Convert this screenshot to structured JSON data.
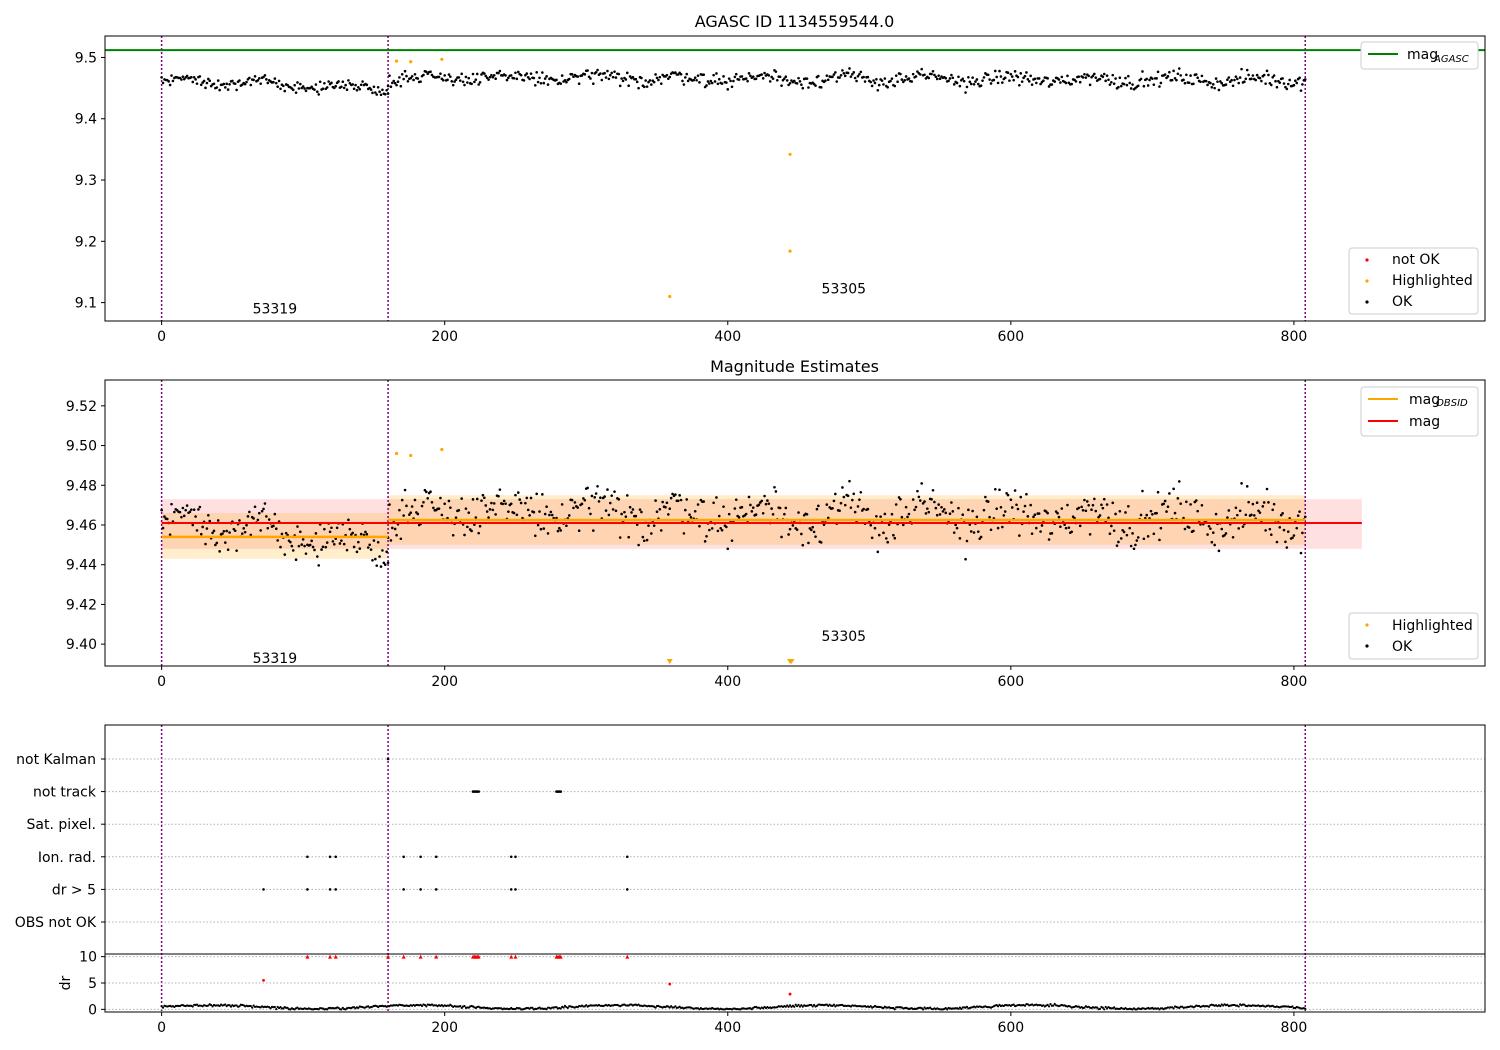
{
  "chart_data": [
    {
      "type": "scatter",
      "title": "AGASC ID 1134559544.0",
      "xlim": [
        -40,
        935
      ],
      "ylim": [
        9.07,
        9.535
      ],
      "xticks": [
        0,
        200,
        400,
        600,
        800
      ],
      "yticks": [
        9.1,
        9.2,
        9.3,
        9.4,
        9.5
      ],
      "ytick_labels": [
        "9.1",
        "9.2",
        "9.3",
        "9.4",
        "9.5"
      ],
      "vlines": [
        0,
        160,
        808
      ],
      "hline": {
        "name": "mag_AGASC",
        "y": 9.512,
        "color": "#008000"
      },
      "obsids": [
        {
          "label": "53319",
          "x": 80,
          "y": 9.09
        },
        {
          "label": "53305",
          "x": 482,
          "y": 9.123
        }
      ],
      "segments": [
        {
          "x0": 0,
          "x1": 160,
          "mean": 9.456,
          "amp": 0.01,
          "trend": -0.014,
          "noise": 0.008
        },
        {
          "x0": 160,
          "x1": 808,
          "mean": 9.465,
          "amp": 0.009,
          "trend": -0.004,
          "noise": 0.011
        }
      ],
      "highlighted": [
        [
          166,
          9.494
        ],
        [
          176,
          9.493
        ],
        [
          198,
          9.497
        ],
        [
          359,
          9.11
        ],
        [
          444,
          9.342
        ],
        [
          444,
          9.184
        ]
      ],
      "legend_line": {
        "label": "mag",
        "sub": "AGASC"
      },
      "legend_points": [
        {
          "label": "not OK",
          "color": "#ff0000"
        },
        {
          "label": "Highlighted",
          "color": "#ffa500"
        },
        {
          "label": "OK",
          "color": "#000000"
        }
      ],
      "colors": {
        "ok": "#000000",
        "highlighted": "#ffa500",
        "not_ok": "#ff0000",
        "vline": "#800080"
      }
    },
    {
      "type": "scatter",
      "title": "Magnitude Estimates",
      "xlim": [
        -40,
        935
      ],
      "ylim": [
        9.389,
        9.533
      ],
      "xticks": [
        0,
        200,
        400,
        600,
        800
      ],
      "yticks": [
        9.4,
        9.42,
        9.44,
        9.46,
        9.48,
        9.5,
        9.52
      ],
      "ytick_labels": [
        "9.40",
        "9.42",
        "9.44",
        "9.46",
        "9.48",
        "9.50",
        "9.52"
      ],
      "vlines": [
        0,
        160,
        808
      ],
      "obsids": [
        {
          "label": "53319",
          "x": 80,
          "y": 9.393
        },
        {
          "label": "53305",
          "x": 482,
          "y": 9.404
        }
      ],
      "mag_line": {
        "name": "mag",
        "y": 9.461,
        "band": [
          9.448,
          9.473
        ],
        "x0": 0,
        "x1": 848,
        "color": "#ff0000"
      },
      "obsid_lines": [
        {
          "name": "mag_OBSID",
          "x0": 0,
          "x1": 160,
          "y": 9.454,
          "band": [
            9.443,
            9.466
          ]
        },
        {
          "name": "mag_OBSID",
          "x0": 160,
          "x1": 808,
          "y": 9.4625,
          "band": [
            9.45,
            9.475
          ]
        }
      ],
      "segments": [
        {
          "x0": 0,
          "x1": 160,
          "mean": 9.456,
          "amp": 0.01,
          "trend": -0.014,
          "noise": 0.008
        },
        {
          "x0": 160,
          "x1": 808,
          "mean": 9.465,
          "amp": 0.009,
          "trend": -0.004,
          "noise": 0.011
        }
      ],
      "highlighted": [
        [
          166,
          9.496
        ],
        [
          176,
          9.495
        ],
        [
          198,
          9.498
        ]
      ],
      "offscale_markers": [
        359,
        444,
        445
      ],
      "legend_lines": [
        {
          "label": "mag",
          "sub": "OBSID",
          "color": "#ffa500"
        },
        {
          "label": "mag",
          "sub": "",
          "color": "#ff0000"
        }
      ],
      "legend_points": [
        {
          "label": "Highlighted",
          "color": "#ffa500"
        },
        {
          "label": "OK",
          "color": "#000000"
        }
      ],
      "colors": {
        "ok": "#000000",
        "highlighted": "#ffa500",
        "vline": "#800080",
        "obsid_band": "#ffa500",
        "mag_band": "#ff0000"
      }
    },
    {
      "type": "scatter",
      "title": "",
      "xlim": [
        -40,
        935
      ],
      "xticks": [
        0,
        200,
        400,
        600,
        800
      ],
      "vlines": [
        0,
        160,
        808
      ],
      "flag_categories": [
        "not Kalman",
        "not track",
        "Sat. pixel.",
        "Ion. rad.",
        "dr > 5",
        "OBS not OK"
      ],
      "flags": {
        "not Kalman": [
          160
        ],
        "not track": [
          220,
          221,
          222,
          223,
          224,
          279,
          280,
          281,
          282
        ],
        "Sat. pixel.": [],
        "Ion. rad.": [
          103,
          119,
          123,
          171,
          183,
          194,
          247,
          250,
          329
        ],
        "dr > 5": [
          72,
          103,
          119,
          123,
          171,
          183,
          194,
          247,
          250,
          329
        ],
        "OBS not OK": []
      },
      "dr": {
        "ylabel": "dr",
        "ylim": [
          -0.5,
          10.5
        ],
        "yticks": [
          0,
          5,
          10
        ],
        "ytick_labels": [
          "0",
          "5",
          "10"
        ],
        "outliers_at_cap": [
          103,
          119,
          123,
          160,
          171,
          183,
          194,
          220,
          221,
          222,
          223,
          224,
          247,
          250,
          279,
          280,
          281,
          282,
          329
        ],
        "outliers": [
          [
            72,
            5.5
          ],
          [
            359,
            4.8
          ],
          [
            444,
            2.9
          ]
        ],
        "colors": {
          "ok": "#000000",
          "not_ok": "#ff0000"
        }
      }
    }
  ]
}
